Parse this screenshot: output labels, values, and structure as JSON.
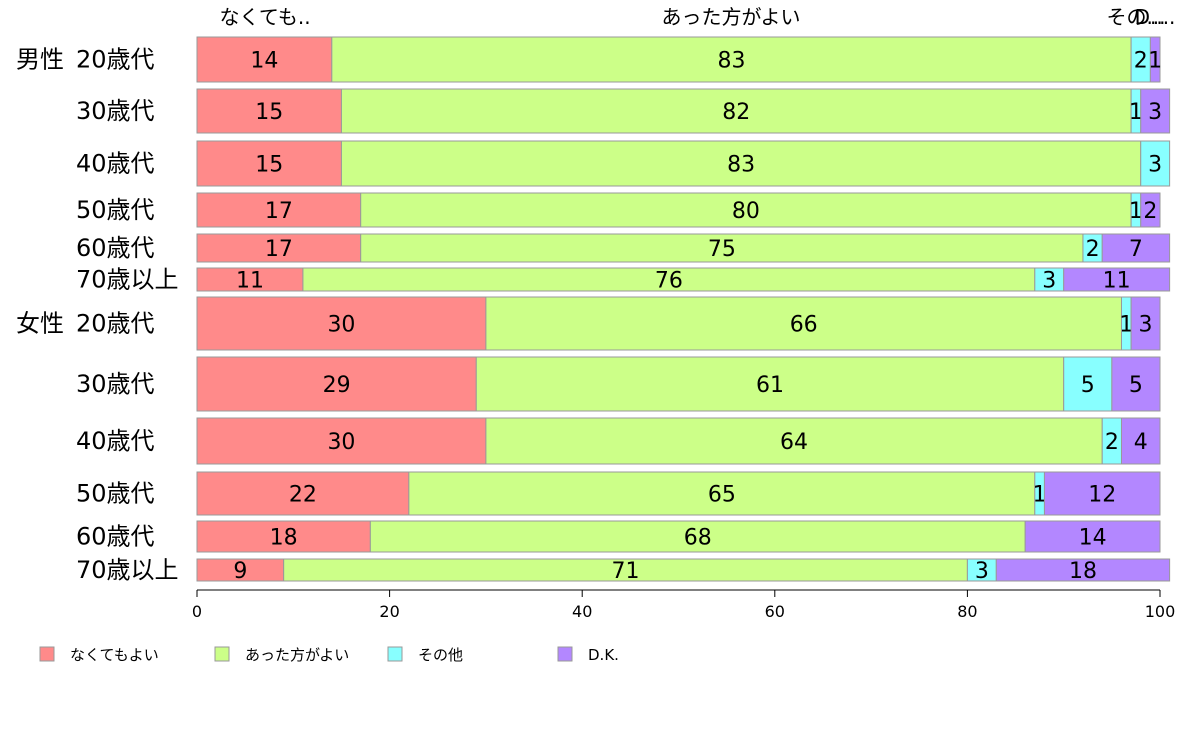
{
  "colors": {
    "なくてもよい": "#ff8a8a",
    "あった方がよい": "#ccff88",
    "その他": "#88ffff",
    "D.K.": "#b387ff"
  },
  "chart_data": {
    "type": "bar",
    "orientation": "horizontal",
    "stacked": true,
    "column_headers": [
      "なくても..",
      "あった方がよい",
      "その...",
      "D...."
    ],
    "groups": [
      "男性",
      "女性"
    ],
    "categories": [
      "20歳代",
      "30歳代",
      "40歳代",
      "50歳代",
      "60歳代",
      "70歳以上",
      "20歳代",
      "30歳代",
      "40歳代",
      "50歳代",
      "60歳代",
      "70歳以上"
    ],
    "category_group": [
      "男性",
      "",
      "",
      "",
      "",
      "",
      "女性",
      "",
      "",
      "",
      "",
      ""
    ],
    "series": [
      {
        "name": "なくてもよい",
        "values": [
          14,
          15,
          15,
          17,
          17,
          11,
          30,
          29,
          30,
          22,
          18,
          9
        ]
      },
      {
        "name": "あった方がよい",
        "values": [
          83,
          82,
          83,
          80,
          75,
          76,
          66,
          61,
          64,
          65,
          68,
          71
        ]
      },
      {
        "name": "その他",
        "values": [
          2,
          1,
          3,
          1,
          2,
          3,
          1,
          5,
          2,
          1,
          0,
          3
        ]
      },
      {
        "name": "D.K.",
        "values": [
          1,
          3,
          0,
          2,
          7,
          11,
          3,
          5,
          4,
          12,
          14,
          18
        ]
      }
    ],
    "xlim": [
      0,
      100
    ],
    "xticks": [
      0,
      20,
      40,
      60,
      80,
      100
    ],
    "legend": [
      "なくてもよい",
      "あった方がよい",
      "その他",
      "D.K."
    ],
    "legend_position": "bottom",
    "grid": false
  }
}
